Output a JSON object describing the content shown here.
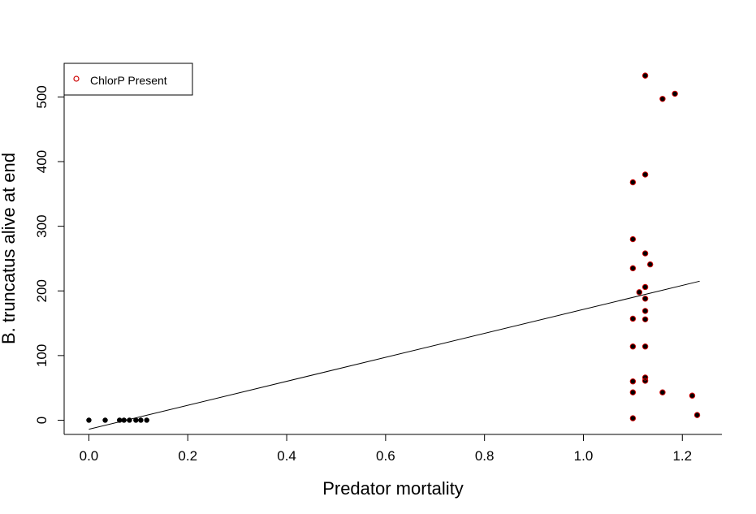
{
  "chart_data": {
    "type": "scatter",
    "title": "",
    "xlabel": "Predator mortality",
    "ylabel": "B. truncatus alive at end",
    "xlim": [
      -0.05,
      1.28
    ],
    "ylim": [
      -22,
      552
    ],
    "xticks": [
      0.0,
      0.2,
      0.4,
      0.6,
      0.8,
      1.0,
      1.2
    ],
    "xtick_labels": [
      "0.0",
      "0.2",
      "0.4",
      "0.6",
      "0.8",
      "1.0",
      "1.2"
    ],
    "yticks": [
      0,
      100,
      200,
      300,
      400,
      500
    ],
    "ytick_labels": [
      "0",
      "100",
      "200",
      "300",
      "400",
      "500"
    ],
    "grid": false,
    "legend": {
      "position": "top-left",
      "entries": [
        {
          "label": "ChlorP Present",
          "color": "#cc0000",
          "marker": "open-circle"
        }
      ]
    },
    "series": [
      {
        "name": "",
        "color": "#000000",
        "marker": "filled-circle",
        "points": [
          [
            0.0,
            0
          ],
          [
            0.033,
            0
          ],
          [
            0.062,
            0
          ],
          [
            0.071,
            0
          ],
          [
            0.082,
            0
          ],
          [
            0.095,
            0
          ],
          [
            0.105,
            0
          ],
          [
            0.117,
            0
          ],
          [
            1.1,
            368
          ],
          [
            1.1,
            280
          ],
          [
            1.1,
            235
          ],
          [
            1.1,
            157
          ],
          [
            1.1,
            114
          ],
          [
            1.1,
            60
          ],
          [
            1.1,
            43
          ],
          [
            1.1,
            3
          ],
          [
            1.113,
            198
          ],
          [
            1.125,
            533
          ],
          [
            1.125,
            380
          ],
          [
            1.125,
            258
          ],
          [
            1.125,
            206
          ],
          [
            1.125,
            188
          ],
          [
            1.125,
            169
          ],
          [
            1.125,
            156
          ],
          [
            1.125,
            114
          ],
          [
            1.125,
            66
          ],
          [
            1.125,
            61
          ],
          [
            1.135,
            241
          ],
          [
            1.16,
            497
          ],
          [
            1.16,
            43
          ],
          [
            1.185,
            505
          ],
          [
            1.22,
            38
          ],
          [
            1.23,
            8
          ]
        ]
      },
      {
        "name": "ChlorP Present",
        "color": "#cc0000",
        "marker": "open-circle",
        "points": [
          [
            1.1,
            368
          ],
          [
            1.1,
            280
          ],
          [
            1.1,
            235
          ],
          [
            1.1,
            157
          ],
          [
            1.1,
            114
          ],
          [
            1.1,
            60
          ],
          [
            1.1,
            43
          ],
          [
            1.1,
            3
          ],
          [
            1.113,
            198
          ],
          [
            1.125,
            533
          ],
          [
            1.125,
            380
          ],
          [
            1.125,
            258
          ],
          [
            1.125,
            206
          ],
          [
            1.125,
            188
          ],
          [
            1.125,
            169
          ],
          [
            1.125,
            156
          ],
          [
            1.125,
            114
          ],
          [
            1.125,
            66
          ],
          [
            1.125,
            61
          ],
          [
            1.135,
            241
          ],
          [
            1.16,
            497
          ],
          [
            1.16,
            43
          ],
          [
            1.185,
            505
          ],
          [
            1.22,
            38
          ],
          [
            1.23,
            8
          ]
        ]
      }
    ],
    "regression_line": {
      "x": [
        0.0,
        1.235
      ],
      "y": [
        -14,
        215
      ],
      "color": "#000000"
    }
  }
}
